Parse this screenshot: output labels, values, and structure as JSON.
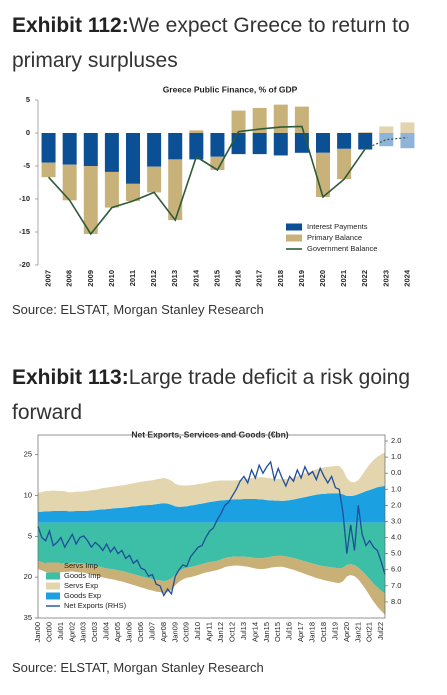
{
  "exhibits": [
    {
      "label": "Exhibit 112:",
      "title": "We expect Greece to return to primary surpluses",
      "source": "Source: ELSTAT, Morgan Stanley Research"
    },
    {
      "label": "Exhibit 113:",
      "title": "Large trade deficit a risk going forward",
      "source": "Source: ELSTAT, Morgan Stanley Research"
    }
  ],
  "chart_data": [
    {
      "type": "bar",
      "stacked": true,
      "title": "Greece Public Finance, % of GDP",
      "categories": [
        "2007",
        "2008",
        "2009",
        "2010",
        "2011",
        "2012",
        "2013",
        "2014",
        "2015",
        "2016",
        "2017",
        "2018",
        "2019",
        "2020",
        "2021",
        "2022",
        "2023",
        "2024"
      ],
      "forecast_from": "2023",
      "series": [
        {
          "name": "Interest Payments",
          "color": "#0b4f94",
          "forecast_color": "#8fb3d9",
          "values": [
            -4.5,
            -4.8,
            -5.0,
            -5.9,
            -7.7,
            -5.1,
            -4.0,
            -4.0,
            -3.6,
            -3.2,
            -3.2,
            -3.4,
            -3.0,
            -3.0,
            -2.4,
            -2.5,
            -2.0,
            -2.3
          ]
        },
        {
          "name": "Primary Balance",
          "color": "#c9b27a",
          "forecast_color": "#e3d4b0",
          "values": [
            -2.2,
            -5.4,
            -10.3,
            -5.4,
            -2.6,
            -3.9,
            -9.2,
            0.4,
            -2.0,
            3.4,
            3.8,
            4.3,
            4.0,
            -6.7,
            -4.6,
            0.1,
            1.0,
            1.6
          ]
        },
        {
          "name": "Government Balance",
          "type": "line",
          "color": "#2e5b3a",
          "values": [
            -6.7,
            -10.2,
            -15.3,
            -11.3,
            -10.3,
            -9.0,
            -13.2,
            -3.6,
            -5.6,
            0.2,
            0.6,
            0.9,
            1.0,
            -9.7,
            -7.0,
            -2.4,
            -1.0,
            -0.7
          ]
        }
      ],
      "ylim": [
        -20,
        5
      ],
      "yticks": [
        5,
        0,
        -5,
        -10,
        -15,
        -20
      ],
      "legend": "lower right"
    },
    {
      "type": "area",
      "stacked": true,
      "title": "Net Exports, Services and Goods (€bn)",
      "categories": [
        "Jan00",
        null,
        null,
        "Oct00",
        null,
        null,
        "Jul01",
        null,
        null,
        "Apr02",
        null,
        null,
        "Jan03",
        null,
        null,
        "Oct03",
        null,
        null,
        "Jul04",
        null,
        null,
        "Apr05",
        null,
        null,
        "Jan06",
        null,
        null,
        "Oct06",
        null,
        null,
        "Jul07",
        null,
        null,
        "Apr08",
        null,
        null,
        "Jan09",
        null,
        null,
        "Oct09",
        null,
        null,
        "Jul10",
        null,
        null,
        "Apr11",
        null,
        null,
        "Jan12",
        null,
        null,
        "Oct12",
        null,
        null,
        "Jul13",
        null,
        null,
        "Apr14",
        null,
        null,
        "Jan15",
        null,
        null,
        "Oct15",
        null,
        null,
        "Jul16",
        null,
        null,
        "Apr17",
        null,
        null,
        "Jan18",
        null,
        null,
        "Oct18",
        null,
        null,
        "Jul19",
        null,
        null,
        "Apr20",
        null,
        null,
        "Jan21",
        null,
        null,
        "Oct21",
        null,
        null,
        "Jul22",
        null
      ],
      "series": [
        {
          "name": "Servs Imp",
          "color": "#c8b077",
          "values": [
            -3.0,
            -3.0,
            -3.1,
            -3.1,
            -3.2,
            -3.2,
            -3.2,
            -3.2,
            -3.2,
            -3.2,
            -3.3,
            -3.3,
            -3.3,
            -3.4,
            -3.4,
            -3.5,
            -3.5,
            -3.6,
            -3.6,
            -3.7,
            -3.7,
            -3.8,
            -3.8,
            -3.9,
            -3.9,
            -4.0,
            -4.0,
            -4.1,
            -4.1,
            -4.2,
            -4.2,
            -4.3,
            -4.3,
            -4.4,
            -4.3,
            -4.2,
            -4.0,
            -3.9,
            -3.8,
            -3.7,
            -3.7,
            -3.6,
            -3.6,
            -3.5,
            -3.5,
            -3.5,
            -3.4,
            -3.4,
            -3.4,
            -3.3,
            -3.3,
            -3.3,
            -3.3,
            -3.4,
            -3.5,
            -3.6,
            -3.7,
            -3.8,
            -3.9,
            -4.0,
            -4.0,
            -4.0,
            -4.0,
            -4.0,
            -4.0,
            -4.1,
            -4.2,
            -4.3,
            -4.4,
            -4.5,
            -4.6,
            -4.7,
            -4.8,
            -4.9,
            -5.0,
            -5.1,
            -5.2,
            -5.3,
            -5.4,
            -5.4,
            -5.0,
            -4.2,
            -4.0,
            -4.0,
            -4.3,
            -4.8,
            -5.4,
            -6.0,
            -6.6,
            -7.0,
            -7.4,
            -7.8
          ]
        },
        {
          "name": "Goods Imp",
          "color": "#3cbfa6",
          "values": [
            -14.0,
            -14.5,
            -15.0,
            -15.2,
            -15.3,
            -15.2,
            -15.0,
            -14.9,
            -14.8,
            -14.7,
            -14.8,
            -14.9,
            -15.0,
            -15.3,
            -15.6,
            -15.9,
            -16.2,
            -16.5,
            -16.8,
            -17.0,
            -17.2,
            -17.5,
            -17.8,
            -18.1,
            -18.5,
            -18.9,
            -19.3,
            -19.7,
            -20.0,
            -20.4,
            -20.7,
            -21.0,
            -21.2,
            -21.5,
            -21.2,
            -20.5,
            -19.0,
            -17.8,
            -17.0,
            -16.5,
            -16.3,
            -16.0,
            -15.6,
            -15.2,
            -14.8,
            -14.5,
            -14.3,
            -14.0,
            -13.5,
            -13.0,
            -12.7,
            -12.5,
            -12.4,
            -12.4,
            -12.5,
            -12.6,
            -12.8,
            -13.0,
            -13.1,
            -13.0,
            -12.8,
            -12.5,
            -12.3,
            -12.2,
            -12.2,
            -12.4,
            -12.7,
            -13.0,
            -13.4,
            -13.8,
            -14.2,
            -14.6,
            -15.0,
            -15.4,
            -15.7,
            -16.0,
            -16.2,
            -16.4,
            -16.6,
            -16.8,
            -16.5,
            -15.5,
            -15.2,
            -15.6,
            -16.5,
            -17.8,
            -19.2,
            -20.8,
            -22.4,
            -23.8,
            -25.0,
            -26.0
          ]
        },
        {
          "name": "Servs Exp",
          "color": "#e3d5ae",
          "values": [
            7.0,
            7.2,
            7.4,
            7.5,
            7.5,
            7.4,
            7.3,
            7.2,
            7.0,
            7.0,
            7.1,
            7.1,
            7.2,
            7.3,
            7.4,
            7.5,
            7.6,
            7.8,
            7.9,
            8.0,
            8.0,
            8.1,
            8.2,
            8.3,
            8.4,
            8.5,
            8.6,
            8.7,
            8.8,
            8.9,
            9.0,
            9.1,
            9.2,
            9.2,
            9.1,
            8.8,
            8.3,
            8.0,
            7.8,
            7.6,
            7.5,
            7.4,
            7.4,
            7.3,
            7.3,
            7.3,
            7.4,
            7.4,
            7.3,
            7.2,
            7.1,
            7.0,
            7.0,
            7.1,
            7.3,
            7.5,
            7.7,
            7.9,
            8.1,
            8.2,
            8.2,
            8.1,
            8.0,
            8.0,
            7.9,
            7.9,
            8.0,
            8.1,
            8.3,
            8.5,
            8.7,
            8.9,
            9.1,
            9.3,
            9.5,
            9.7,
            9.8,
            9.9,
            10.0,
            10.0,
            9.0,
            6.5,
            5.2,
            4.8,
            5.2,
            6.5,
            8.0,
            9.5,
            10.5,
            11.2,
            11.8,
            12.3
          ]
        },
        {
          "name": "Goods Exp",
          "color": "#1ba1e2",
          "values": [
            4.0,
            4.0,
            4.2,
            4.2,
            4.3,
            4.3,
            4.4,
            4.4,
            4.2,
            4.2,
            4.3,
            4.3,
            4.3,
            4.4,
            4.5,
            4.6,
            4.8,
            4.9,
            5.0,
            5.1,
            5.3,
            5.4,
            5.5,
            5.6,
            5.8,
            6.0,
            6.1,
            6.3,
            6.4,
            6.5,
            6.6,
            6.8,
            7.0,
            7.2,
            7.0,
            6.6,
            6.0,
            5.8,
            5.9,
            6.0,
            6.3,
            6.5,
            6.8,
            7.0,
            7.3,
            7.6,
            7.8,
            8.0,
            8.2,
            8.3,
            8.4,
            8.5,
            8.6,
            8.6,
            8.7,
            8.7,
            8.7,
            8.7,
            8.6,
            8.5,
            8.3,
            8.2,
            8.1,
            8.1,
            8.0,
            8.1,
            8.3,
            8.5,
            8.8,
            9.1,
            9.4,
            9.7,
            10.0,
            10.3,
            10.5,
            10.6,
            10.7,
            10.8,
            10.8,
            10.8,
            10.4,
            9.8,
            9.8,
            10.0,
            10.5,
            11.0,
            11.6,
            12.0,
            12.5,
            13.0,
            13.3,
            13.5
          ]
        },
        {
          "name": "Net Exports (RHS)",
          "type": "line",
          "axis": "y2",
          "color": "#1f4e9a",
          "values": [
            -3.3,
            -4.0,
            -4.2,
            -3.6,
            -4.5,
            -4.3,
            -4.0,
            -4.6,
            -4.2,
            -3.8,
            -4.4,
            -4.0,
            -3.9,
            -4.2,
            -4.6,
            -4.3,
            -4.5,
            -4.8,
            -4.4,
            -4.9,
            -4.6,
            -5.0,
            -4.8,
            -5.3,
            -5.1,
            -5.6,
            -5.4,
            -5.9,
            -6.0,
            -6.4,
            -6.3,
            -6.9,
            -7.0,
            -7.6,
            -7.2,
            -7.5,
            -6.4,
            -6.0,
            -5.7,
            -5.8,
            -5.2,
            -4.9,
            -4.6,
            -4.5,
            -4.0,
            -3.6,
            -3.4,
            -2.9,
            -2.5,
            -2.0,
            -1.8,
            -1.4,
            -1.0,
            -0.5,
            -0.2,
            -0.6,
            0.2,
            -0.3,
            0.5,
            0.0,
            0.4,
            0.7,
            -0.4,
            0.3,
            -0.3,
            -0.8,
            -0.2,
            -0.5,
            0.2,
            -0.3,
            0.4,
            -0.1,
            0.1,
            -0.4,
            0.3,
            -0.2,
            -0.6,
            -0.2,
            -0.9,
            -1.0,
            -2.5,
            -5.0,
            -3.2,
            -4.8,
            -2.0,
            -3.8,
            -4.5,
            -4.2,
            -4.6,
            -4.8,
            -5.5,
            -6.3
          ]
        }
      ],
      "ylim": [
        -35,
        30
      ],
      "yticks": [
        25,
        10,
        {
          "value": -5,
          "label": "5"
        },
        {
          "value": -20,
          "label": "20"
        },
        {
          "value": -35,
          "label": "35"
        }
      ],
      "y2lim": [
        -9,
        2
      ],
      "y2ticks": [
        {
          "value": 2,
          "label": "2.0"
        },
        {
          "value": 1,
          "label": "1.0"
        },
        {
          "value": 0,
          "label": "0.0"
        },
        {
          "value": -1,
          "label": "1.0"
        },
        {
          "value": -2,
          "label": "2.0"
        },
        {
          "value": -3,
          "label": "3.0"
        },
        {
          "value": -4,
          "label": "4.0"
        },
        {
          "value": -5,
          "label": "5.0"
        },
        {
          "value": -6,
          "label": "6.0"
        },
        {
          "value": -7,
          "label": "7.0"
        },
        {
          "value": -8,
          "label": "8.0"
        }
      ],
      "legend": "lower left"
    }
  ]
}
